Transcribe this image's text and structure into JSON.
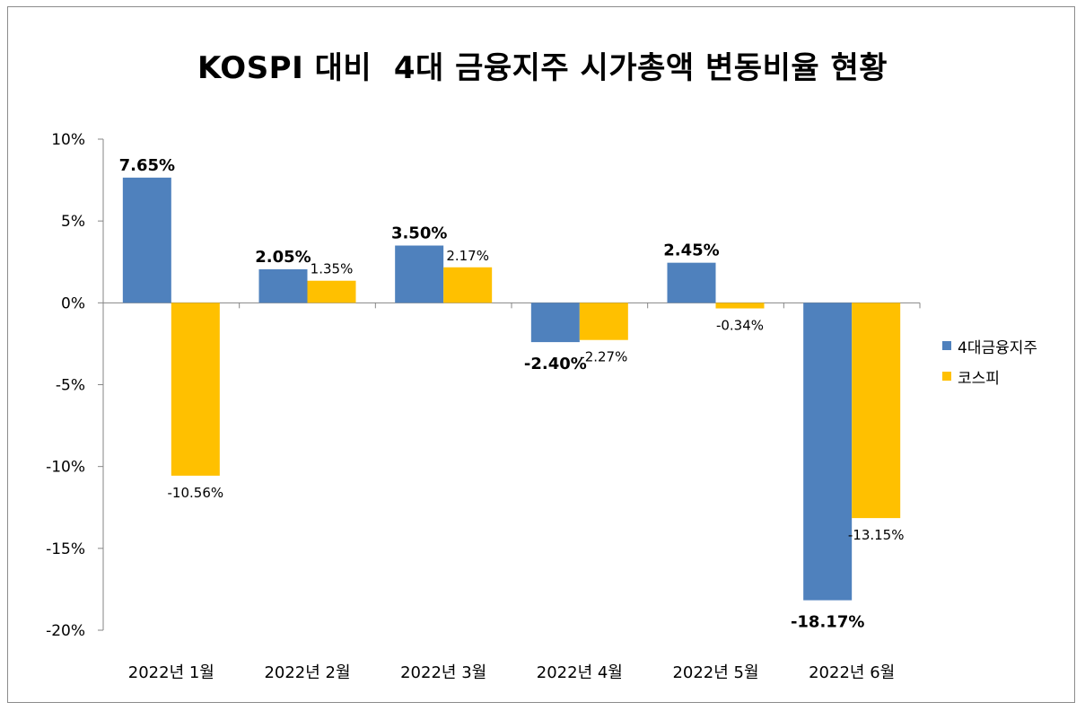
{
  "chart_data": {
    "type": "bar",
    "title": "KOSPI 대비  4대 금융지주 시가총액 변동비율 현황",
    "categories": [
      "2022년 1월",
      "2022년 2월",
      "2022년 3월",
      "2022년 4월",
      "2022년 5월",
      "2022년 6월"
    ],
    "series": [
      {
        "name": "4대금융지주",
        "color": "#4f81bd",
        "values": [
          7.65,
          2.05,
          3.5,
          -2.4,
          2.45,
          -18.17
        ],
        "labels": [
          "7.65%",
          "2.05%",
          "3.50%",
          "-2.40%",
          "2.45%",
          "-18.17%"
        ]
      },
      {
        "name": "코스피",
        "color": "#ffc000",
        "values": [
          -10.56,
          1.35,
          2.17,
          -2.27,
          -0.34,
          -13.15
        ],
        "labels": [
          "-10.56%",
          "1.35%",
          "2.17%",
          "-2.27%",
          "-0.34%",
          "-13.15%"
        ]
      }
    ],
    "y_ticks": [
      "10%",
      "5%",
      "0%",
      "-5%",
      "-10%",
      "-15%",
      "-20%"
    ],
    "y_tick_values": [
      10,
      5,
      0,
      -5,
      -10,
      -15,
      -20
    ],
    "ylim": [
      -20,
      10
    ],
    "legend_position": "right",
    "grid": false
  }
}
